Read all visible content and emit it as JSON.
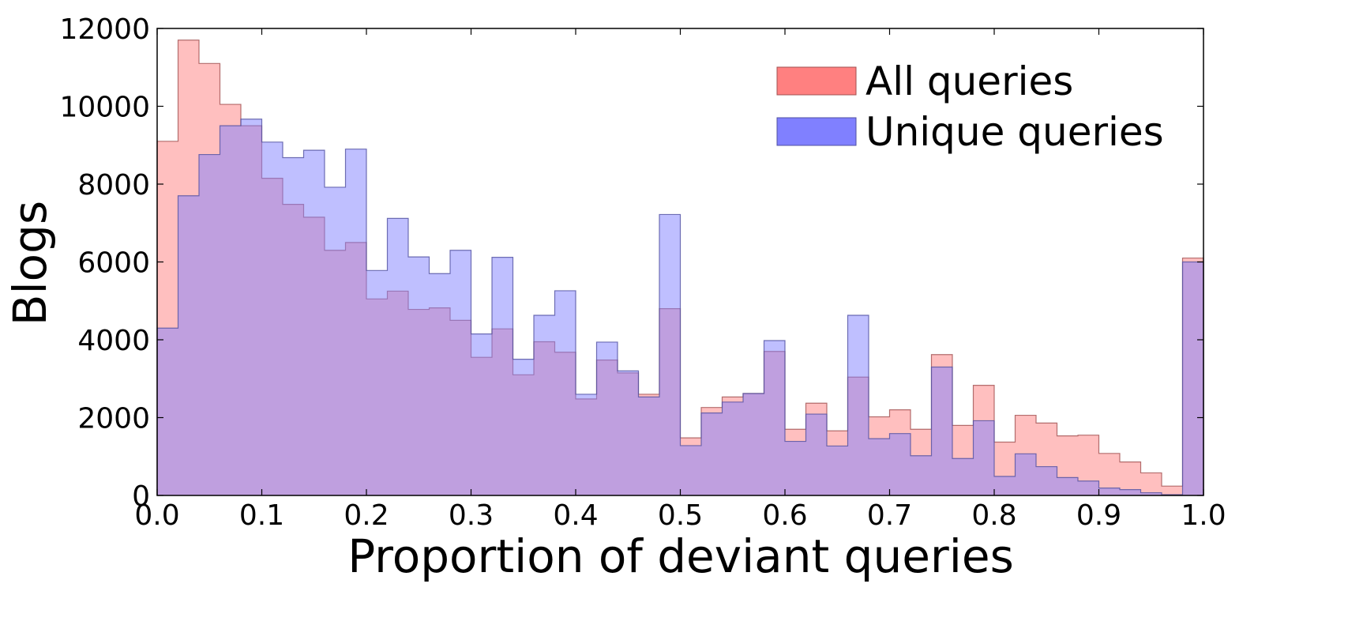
{
  "chart_data": {
    "type": "bar",
    "subtype": "overlaid histogram (step-filled)",
    "xlabel": "Proportion of deviant queries",
    "ylabel": "Blogs",
    "xlim": [
      0.0,
      1.0
    ],
    "ylim": [
      0,
      12000
    ],
    "x_ticks": [
      "0.0",
      "0.1",
      "0.2",
      "0.3",
      "0.4",
      "0.5",
      "0.6",
      "0.7",
      "0.8",
      "0.9",
      "1.0"
    ],
    "y_ticks": [
      "0",
      "2000",
      "4000",
      "6000",
      "8000",
      "10000",
      "12000"
    ],
    "bin_width": 0.02,
    "bin_edges_start": 0.0,
    "legend_position": "top-right",
    "grid": false,
    "series": [
      {
        "name": "All queries",
        "color": "#ff8080",
        "values": [
          9100,
          11700,
          11100,
          10050,
          9500,
          8150,
          7480,
          7150,
          6300,
          6500,
          5050,
          5250,
          4780,
          4820,
          4500,
          3550,
          4280,
          3100,
          3950,
          3680,
          2480,
          3480,
          3150,
          2600,
          4800,
          1480,
          2260,
          2530,
          2620,
          3700,
          1700,
          2370,
          1660,
          3040,
          2020,
          2200,
          1700,
          3620,
          1800,
          2830,
          1370,
          2060,
          1860,
          1530,
          1550,
          1080,
          860,
          580,
          240,
          6100
        ]
      },
      {
        "name": "Unique queries",
        "color": "#8080ff",
        "values": [
          4300,
          7700,
          8760,
          9500,
          9670,
          9080,
          8680,
          8870,
          7920,
          8900,
          5780,
          7120,
          6130,
          5700,
          6300,
          4150,
          6120,
          3500,
          4630,
          5260,
          2600,
          3940,
          3200,
          2530,
          7220,
          1280,
          2120,
          2400,
          2620,
          3980,
          1390,
          2090,
          1270,
          4630,
          1460,
          1590,
          1020,
          3300,
          950,
          1920,
          490,
          1070,
          740,
          460,
          370,
          190,
          150,
          70,
          20,
          6000
        ]
      }
    ],
    "overlap_color": "#7f3fbf"
  }
}
